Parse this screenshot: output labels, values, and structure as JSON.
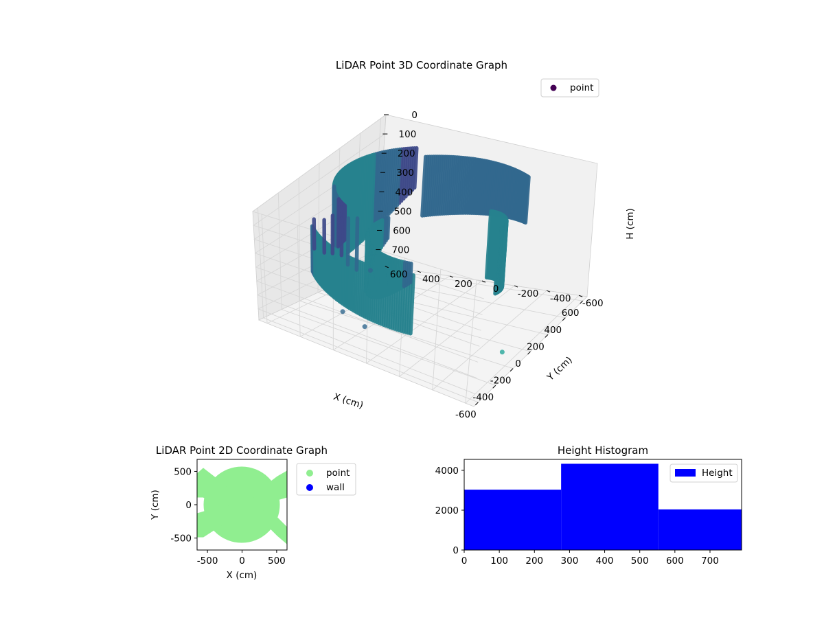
{
  "chart_data": [
    {
      "type": "scatter",
      "title": "LiDAR Point 3D Coordinate Graph",
      "xlabel": "X (cm)",
      "ylabel": "Y (cm)",
      "zlabel": "H (cm)",
      "x_ticks": [
        "-600",
        "-400",
        "-200",
        "0",
        "200",
        "400",
        "600"
      ],
      "y_ticks": [
        "-600",
        "-400",
        "-200",
        "0",
        "200",
        "400",
        "600"
      ],
      "z_ticks": [
        "0",
        "100",
        "200",
        "300",
        "400",
        "500",
        "600",
        "700"
      ],
      "xlim": [
        -650,
        650
      ],
      "ylim": [
        -650,
        650
      ],
      "zlim": [
        0,
        780
      ],
      "z_inverted": true,
      "colormap": "viridis",
      "legend": {
        "entries": [
          {
            "label": "point",
            "color": "#440154"
          }
        ],
        "position": "top-right"
      }
    },
    {
      "type": "scatter",
      "title": "LiDAR Point 2D Coordinate Graph",
      "xlabel": "X (cm)",
      "ylabel": "Y (cm)",
      "x_ticks": [
        "-500",
        "0",
        "500"
      ],
      "y_ticks": [
        "-500",
        "0",
        "500"
      ],
      "xlim": [
        -650,
        650
      ],
      "ylim": [
        -680,
        680
      ],
      "legend": {
        "entries": [
          {
            "label": "point",
            "color": "#90ee90"
          },
          {
            "label": "wall",
            "color": "#0000ff"
          }
        ],
        "position": "outside-right"
      }
    },
    {
      "type": "bar",
      "title": "Height Histogram",
      "x_ticks": [
        "0",
        "100",
        "200",
        "300",
        "400",
        "500",
        "600",
        "700"
      ],
      "y_ticks": [
        "0",
        "2000",
        "4000"
      ],
      "xlim": [
        0,
        790
      ],
      "ylim": [
        0,
        4550
      ],
      "bins": [
        {
          "x0": 0,
          "x1": 276,
          "value": 3030
        },
        {
          "x0": 276,
          "x1": 553,
          "value": 4330
        },
        {
          "x0": 553,
          "x1": 790,
          "value": 2040
        }
      ],
      "color": "#0000ff",
      "legend": {
        "entries": [
          {
            "label": "Height",
            "color": "#0000ff"
          }
        ],
        "position": "top-right"
      }
    }
  ]
}
